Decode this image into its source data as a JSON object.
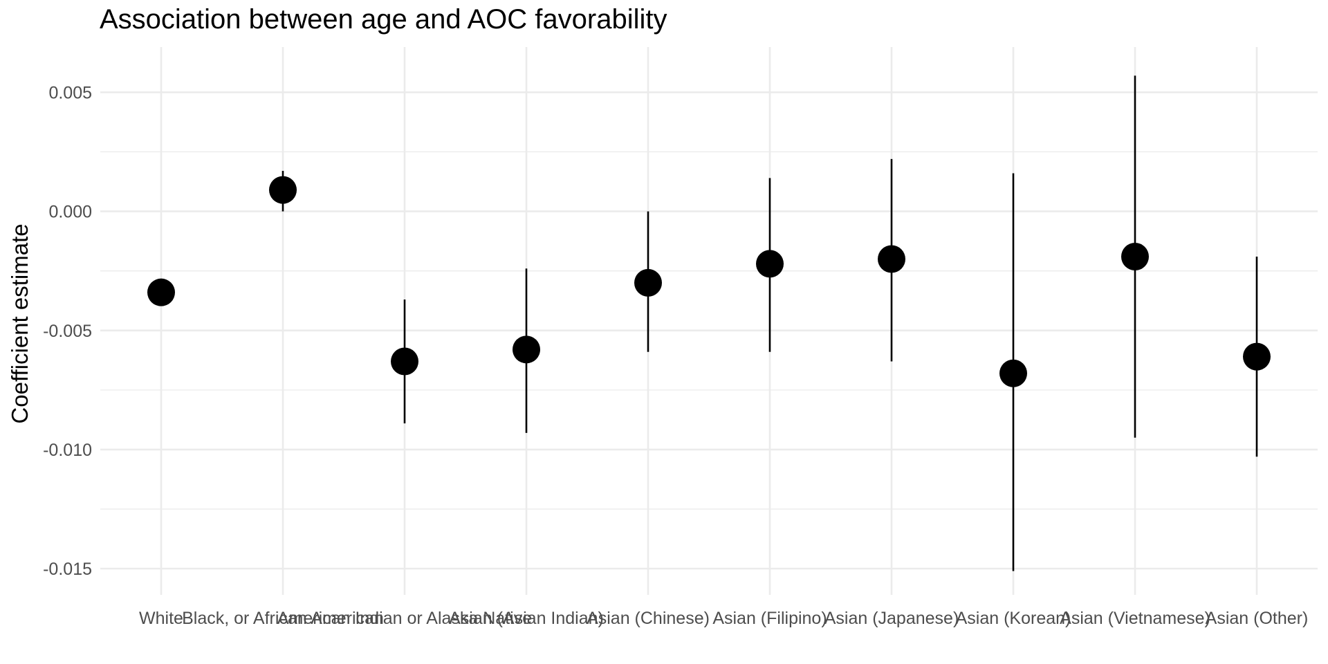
{
  "chart_data": {
    "type": "scatter",
    "title": "Association between age and AOC favorability",
    "xlabel": "",
    "ylabel": "Coefficient estimate",
    "categories": [
      "White",
      "Black, or African American",
      "American Indian or Alaska Native",
      "Asian (Asian Indian)",
      "Asian (Chinese)",
      "Asian (Filipino)",
      "Asian (Japanese)",
      "Asian (Korean)",
      "Asian (Vietnamese)",
      "Asian (Other)"
    ],
    "estimates": [
      -0.0034,
      0.0009,
      -0.0063,
      -0.0058,
      -0.003,
      -0.0022,
      -0.002,
      -0.0068,
      -0.0019,
      -0.0061
    ],
    "ci_lower": [
      null,
      0.0,
      -0.0089,
      -0.0093,
      -0.0059,
      -0.0059,
      -0.0063,
      -0.0151,
      -0.0095,
      -0.0103
    ],
    "ci_upper": [
      null,
      0.0017,
      -0.0037,
      -0.0024,
      0.0,
      0.0014,
      0.0022,
      0.0016,
      0.0057,
      -0.0019
    ],
    "ylim": [
      -0.0161,
      0.0069
    ],
    "yticks": [
      0.005,
      0.0,
      -0.005,
      -0.01,
      -0.015
    ],
    "ytick_labels": [
      "0.005",
      "0.000",
      "-0.005",
      "-0.010",
      "-0.015"
    ],
    "grid": true,
    "legend": "none",
    "colors": {
      "point": "#000000",
      "grid": "#ebebeb",
      "text": "#4d4d4d"
    }
  }
}
